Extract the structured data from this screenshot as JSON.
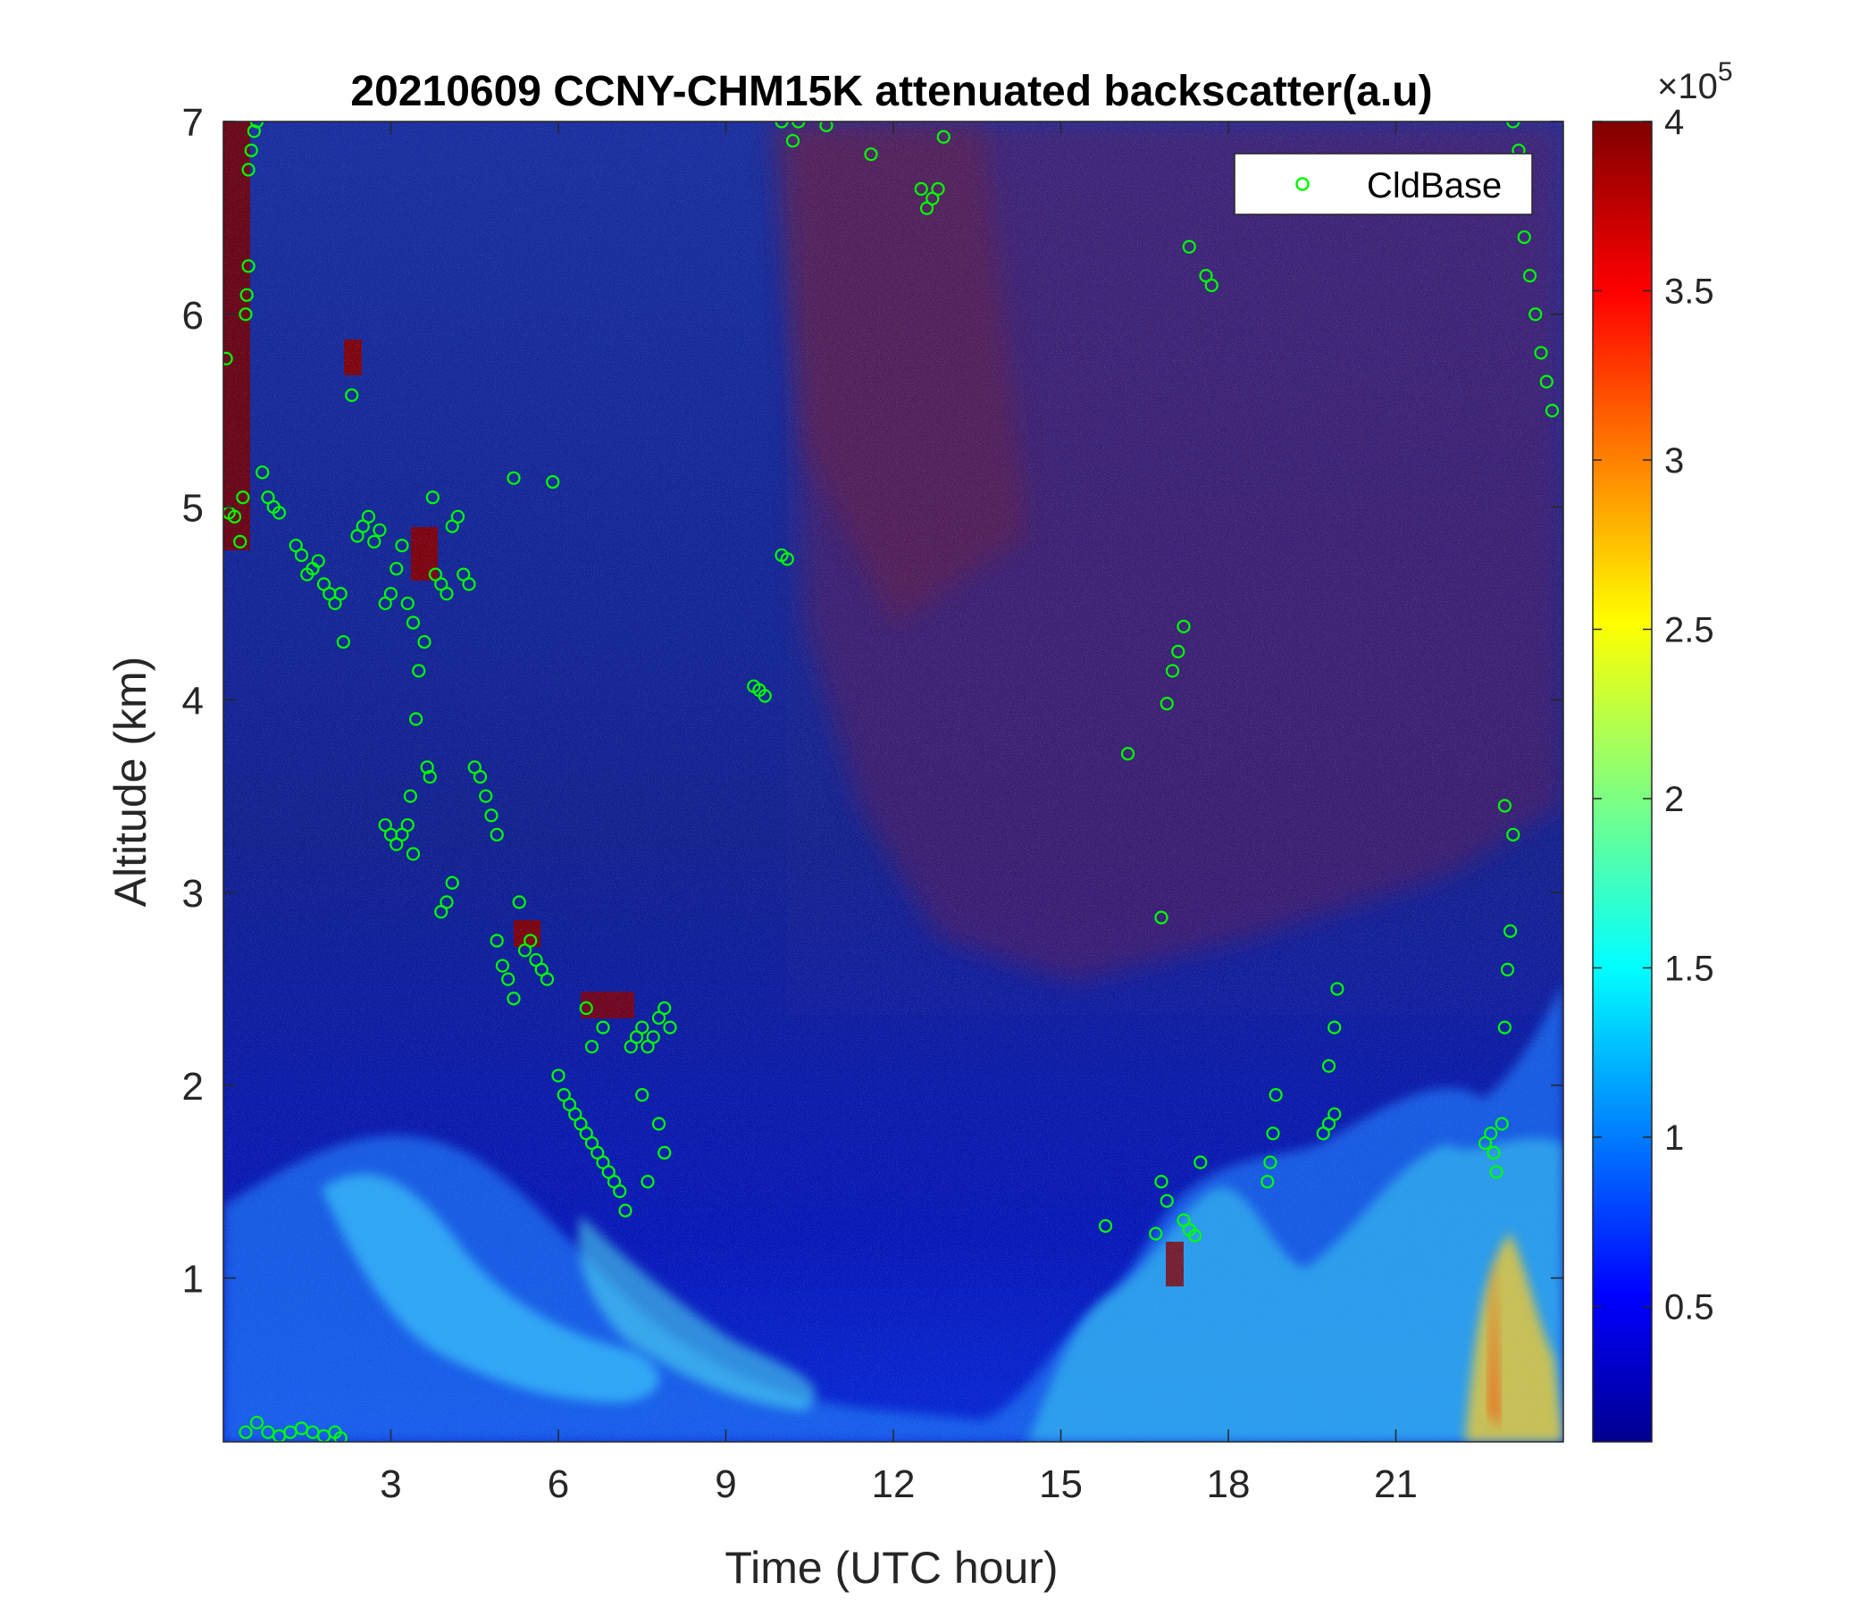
{
  "chart_data": {
    "type": "heatmap",
    "title": "20210609 CCNY-CHM15K attenuated backscatter(a.u)",
    "xlabel": "Time (UTC hour)",
    "ylabel": "Altitude (km)",
    "xlim": [
      0,
      24
    ],
    "ylim": [
      0.15,
      7
    ],
    "x_ticks": [
      3,
      6,
      9,
      12,
      15,
      18,
      21
    ],
    "x_tick_labels": [
      "3",
      "6",
      "9",
      "12",
      "15",
      "18",
      "21"
    ],
    "y_ticks": [
      1,
      2,
      3,
      4,
      5,
      6,
      7
    ],
    "y_tick_labels": [
      "1",
      "2",
      "3",
      "4",
      "5",
      "6",
      "7"
    ],
    "colormap": "jet",
    "colorbar": {
      "min": 0.1,
      "max": 4,
      "ticks": [
        0.5,
        1,
        1.5,
        2,
        2.5,
        3,
        3.5,
        4
      ],
      "tick_labels": [
        "0.5",
        "1",
        "1.5",
        "2",
        "2.5",
        "3",
        "3.5",
        "4"
      ],
      "exponent_label": "×10",
      "exponent_power": "5"
    },
    "legend": {
      "entries": [
        "CldBase"
      ],
      "position": "top-right"
    },
    "series": [
      {
        "name": "CldBase",
        "marker": "circle",
        "color": "#00ff00",
        "points": [
          [
            0.05,
            5.77
          ],
          [
            0.1,
            4.97
          ],
          [
            0.2,
            4.95
          ],
          [
            0.3,
            4.82
          ],
          [
            0.35,
            5.05
          ],
          [
            0.4,
            6.0
          ],
          [
            0.42,
            6.1
          ],
          [
            0.45,
            6.25
          ],
          [
            0.45,
            6.75
          ],
          [
            0.5,
            6.85
          ],
          [
            0.55,
            6.95
          ],
          [
            0.6,
            7.0
          ],
          [
            0.7,
            5.18
          ],
          [
            0.8,
            5.05
          ],
          [
            0.9,
            5.0
          ],
          [
            1.0,
            4.97
          ],
          [
            1.3,
            4.8
          ],
          [
            1.4,
            4.75
          ],
          [
            1.5,
            4.65
          ],
          [
            1.6,
            4.68
          ],
          [
            1.7,
            4.72
          ],
          [
            1.8,
            4.6
          ],
          [
            1.9,
            4.55
          ],
          [
            2.0,
            4.5
          ],
          [
            2.1,
            4.55
          ],
          [
            2.15,
            4.3
          ],
          [
            2.3,
            5.58
          ],
          [
            2.4,
            4.85
          ],
          [
            2.5,
            4.9
          ],
          [
            2.6,
            4.95
          ],
          [
            2.7,
            4.82
          ],
          [
            2.8,
            4.88
          ],
          [
            2.9,
            4.5
          ],
          [
            3.0,
            4.55
          ],
          [
            3.1,
            4.68
          ],
          [
            3.2,
            4.8
          ],
          [
            3.3,
            4.5
          ],
          [
            3.4,
            4.4
          ],
          [
            3.45,
            3.9
          ],
          [
            3.5,
            4.15
          ],
          [
            3.6,
            4.3
          ],
          [
            3.65,
            3.65
          ],
          [
            3.7,
            3.6
          ],
          [
            3.75,
            5.05
          ],
          [
            3.8,
            4.65
          ],
          [
            3.9,
            4.6
          ],
          [
            4.0,
            4.55
          ],
          [
            4.1,
            4.9
          ],
          [
            4.2,
            4.95
          ],
          [
            4.3,
            4.65
          ],
          [
            4.4,
            4.6
          ],
          [
            2.9,
            3.35
          ],
          [
            3.0,
            3.3
          ],
          [
            3.1,
            3.25
          ],
          [
            3.2,
            3.3
          ],
          [
            3.3,
            3.35
          ],
          [
            3.4,
            3.2
          ],
          [
            3.35,
            3.5
          ],
          [
            3.9,
            2.9
          ],
          [
            4.0,
            2.95
          ],
          [
            4.1,
            3.05
          ],
          [
            4.5,
            3.65
          ],
          [
            4.6,
            3.6
          ],
          [
            4.7,
            3.5
          ],
          [
            4.8,
            3.4
          ],
          [
            4.9,
            3.3
          ],
          [
            5.2,
            5.15
          ],
          [
            4.9,
            2.75
          ],
          [
            5.0,
            2.62
          ],
          [
            5.1,
            2.55
          ],
          [
            5.2,
            2.45
          ],
          [
            5.3,
            2.95
          ],
          [
            5.4,
            2.7
          ],
          [
            5.5,
            2.75
          ],
          [
            5.6,
            2.65
          ],
          [
            5.7,
            2.6
          ],
          [
            5.8,
            2.55
          ],
          [
            5.9,
            5.13
          ],
          [
            6.0,
            2.05
          ],
          [
            6.1,
            1.95
          ],
          [
            6.2,
            1.9
          ],
          [
            6.3,
            1.85
          ],
          [
            6.4,
            1.8
          ],
          [
            6.5,
            1.75
          ],
          [
            6.6,
            1.7
          ],
          [
            6.7,
            1.65
          ],
          [
            6.8,
            1.6
          ],
          [
            6.9,
            1.55
          ],
          [
            7.0,
            1.5
          ],
          [
            7.1,
            1.45
          ],
          [
            7.2,
            1.35
          ],
          [
            6.5,
            2.4
          ],
          [
            6.6,
            2.2
          ],
          [
            6.8,
            2.3
          ],
          [
            7.3,
            2.2
          ],
          [
            7.4,
            2.25
          ],
          [
            7.5,
            2.3
          ],
          [
            7.6,
            2.2
          ],
          [
            7.7,
            2.25
          ],
          [
            7.8,
            2.35
          ],
          [
            7.9,
            2.4
          ],
          [
            8.0,
            2.3
          ],
          [
            7.5,
            1.95
          ],
          [
            7.8,
            1.8
          ],
          [
            7.9,
            1.65
          ],
          [
            7.6,
            1.5
          ],
          [
            9.5,
            4.07
          ],
          [
            9.6,
            4.05
          ],
          [
            9.7,
            4.02
          ],
          [
            10.0,
            4.75
          ],
          [
            10.1,
            4.73
          ],
          [
            10.0,
            7.0
          ],
          [
            10.2,
            6.9
          ],
          [
            10.3,
            7.0
          ],
          [
            10.8,
            6.98
          ],
          [
            11.6,
            6.83
          ],
          [
            12.5,
            6.65
          ],
          [
            12.6,
            6.55
          ],
          [
            12.7,
            6.6
          ],
          [
            12.8,
            6.65
          ],
          [
            12.9,
            6.92
          ],
          [
            15.8,
            1.27
          ],
          [
            16.2,
            3.72
          ],
          [
            16.8,
            1.5
          ],
          [
            16.9,
            1.4
          ],
          [
            16.7,
            1.23
          ],
          [
            16.8,
            2.87
          ],
          [
            16.9,
            3.98
          ],
          [
            17.0,
            4.15
          ],
          [
            17.1,
            4.25
          ],
          [
            17.2,
            4.38
          ],
          [
            17.3,
            6.35
          ],
          [
            17.2,
            1.3
          ],
          [
            17.3,
            1.25
          ],
          [
            17.4,
            1.22
          ],
          [
            17.5,
            1.6
          ],
          [
            17.6,
            6.2
          ],
          [
            17.7,
            6.15
          ],
          [
            18.7,
            1.5
          ],
          [
            18.75,
            1.6
          ],
          [
            18.8,
            1.75
          ],
          [
            18.85,
            1.95
          ],
          [
            19.7,
            1.75
          ],
          [
            19.8,
            1.8
          ],
          [
            19.9,
            1.85
          ],
          [
            19.8,
            2.1
          ],
          [
            19.9,
            2.3
          ],
          [
            19.95,
            2.5
          ],
          [
            22.6,
            1.7
          ],
          [
            22.7,
            1.75
          ],
          [
            22.75,
            1.65
          ],
          [
            22.8,
            1.55
          ],
          [
            22.9,
            1.8
          ],
          [
            22.95,
            2.3
          ],
          [
            23.0,
            2.6
          ],
          [
            23.05,
            2.8
          ],
          [
            23.1,
            3.3
          ],
          [
            22.95,
            3.45
          ],
          [
            23.2,
            6.85
          ],
          [
            23.1,
            7.0
          ],
          [
            23.3,
            6.4
          ],
          [
            23.4,
            6.2
          ],
          [
            23.5,
            6.0
          ],
          [
            23.6,
            5.8
          ],
          [
            23.7,
            5.65
          ],
          [
            23.8,
            5.5
          ],
          [
            0.4,
            0.2
          ],
          [
            0.6,
            0.25
          ],
          [
            0.8,
            0.2
          ],
          [
            1.0,
            0.18
          ],
          [
            1.2,
            0.2
          ],
          [
            1.4,
            0.22
          ],
          [
            1.6,
            0.2
          ],
          [
            1.8,
            0.18
          ],
          [
            2.0,
            0.2
          ],
          [
            2.1,
            0.17
          ]
        ]
      }
    ]
  }
}
